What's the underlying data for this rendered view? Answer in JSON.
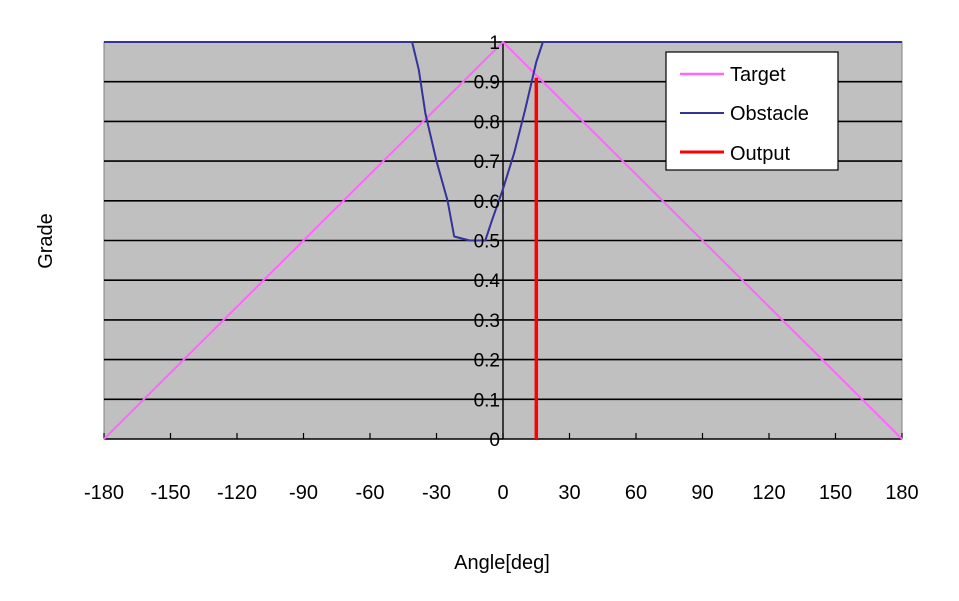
{
  "chart_data": {
    "type": "line",
    "title": "",
    "xlabel": "Angle[deg]",
    "ylabel": "Grade",
    "xlim": [
      -180,
      180
    ],
    "ylim": [
      0,
      1
    ],
    "xticks": [
      -180,
      -150,
      -120,
      -90,
      -60,
      -30,
      0,
      30,
      60,
      90,
      120,
      150,
      180
    ],
    "xtick_labels": [
      "-180",
      "-150",
      "-120",
      "-90",
      "-60",
      "-30",
      "0",
      "30",
      "60",
      "90",
      "120",
      "150",
      "180"
    ],
    "yticks": [
      0,
      0.1,
      0.2,
      0.3,
      0.4,
      0.5,
      0.6,
      0.7,
      0.8,
      0.9,
      1
    ],
    "ytick_labels": [
      "0",
      "0.1",
      "0.2",
      "0.3",
      "0.4",
      "0.5",
      "0.6",
      "0.7",
      "0.8",
      "0.9",
      "1"
    ],
    "grid": "horizontal",
    "legend_position": "top-right",
    "plot_background": "#c0c0c0",
    "series": [
      {
        "name": "Target",
        "color": "#ff66ff",
        "x": [
          -180,
          0,
          180
        ],
        "y": [
          0,
          1,
          0
        ]
      },
      {
        "name": "Obstacle",
        "color": "#333399",
        "x": [
          -180,
          -41,
          -38,
          -35,
          -30,
          -25,
          -22,
          -15,
          -8,
          -5,
          0,
          5,
          10,
          15,
          18,
          180
        ],
        "y": [
          1,
          1,
          0.93,
          0.82,
          0.7,
          0.6,
          0.51,
          0.5,
          0.5,
          0.55,
          0.63,
          0.72,
          0.83,
          0.95,
          1,
          1
        ]
      },
      {
        "name": "Output",
        "color": "#ff0000",
        "x": [
          15,
          15
        ],
        "y": [
          0,
          0.91
        ]
      }
    ]
  }
}
